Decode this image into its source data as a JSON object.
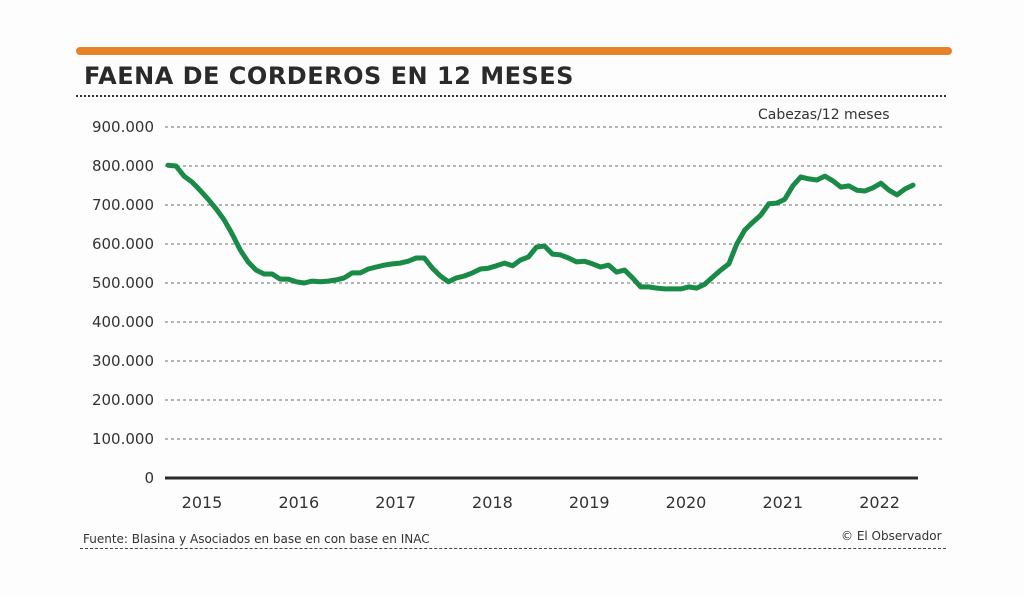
{
  "header": {
    "title": "FAENA DE CORDEROS EN 12 MESES",
    "accent_color": "#e8822a"
  },
  "footer": {
    "source": "Fuente: Blasina y Asociados en base en con base en INAC",
    "credit": "© El Observador"
  },
  "chart_data": {
    "type": "line",
    "title": "FAENA DE CORDEROS EN 12 MESES",
    "unit_label": "Cabezas/12 meses",
    "xlabel": "",
    "ylabel": "Cabezas/12 meses",
    "ylim": [
      0,
      900000
    ],
    "yticks": [
      0,
      100000,
      200000,
      300000,
      400000,
      500000,
      600000,
      700000,
      800000,
      900000
    ],
    "ytick_labels": [
      "0",
      "100.000",
      "200.000",
      "300.000",
      "400.000",
      "500.000",
      "600.000",
      "700.000",
      "800.000",
      "900.000"
    ],
    "xtick_labels": [
      "2015",
      "2016",
      "2017",
      "2018",
      "2019",
      "2020",
      "2021",
      "2022"
    ],
    "x_range_years": [
      2014.95,
      2022.95
    ],
    "grid": "horizontal dotted",
    "legend": "none",
    "line_color": "#1a8a47",
    "series": [
      {
        "name": "Faena de corderos (acumulado 12 meses)",
        "start": "2015 (first month shown)",
        "frequency": "monthly",
        "values": [
          802000,
          800000,
          774000,
          759000,
          738000,
          715000,
          690000,
          662000,
          626000,
          585000,
          554000,
          533000,
          523000,
          523000,
          510000,
          510000,
          503000,
          500000,
          505000,
          503000,
          505000,
          508000,
          513000,
          526000,
          526000,
          536000,
          541000,
          546000,
          549000,
          551000,
          556000,
          564000,
          564000,
          538000,
          518000,
          503000,
          513000,
          518000,
          526000,
          536000,
          538000,
          544000,
          551000,
          544000,
          559000,
          567000,
          592000,
          595000,
          574000,
          572000,
          564000,
          554000,
          556000,
          549000,
          541000,
          546000,
          528000,
          533000,
          513000,
          490000,
          490000,
          487000,
          485000,
          485000,
          485000,
          490000,
          487000,
          497000,
          515000,
          533000,
          549000,
          600000,
          636000,
          656000,
          674000,
          703000,
          705000,
          715000,
          749000,
          772000,
          767000,
          764000,
          774000,
          762000,
          746000,
          749000,
          738000,
          736000,
          744000,
          756000,
          738000,
          726000,
          741000,
          751000
        ]
      }
    ]
  }
}
